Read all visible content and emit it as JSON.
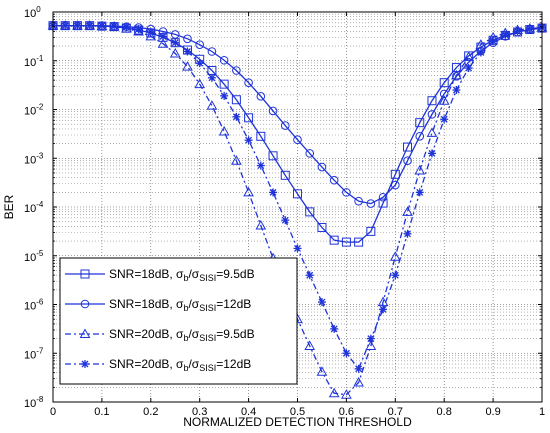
{
  "chart_data": {
    "type": "line",
    "xlabel": "NORMALIZED DETECTION THRESHOLD",
    "ylabel": "BER",
    "xlim": [
      0,
      1
    ],
    "ylim_log10": [
      -8,
      0
    ],
    "yscale": "log",
    "grid": "dotted",
    "x_ticks": [
      "0",
      "0.1",
      "0.2",
      "0.3",
      "0.4",
      "0.5",
      "0.6",
      "0.7",
      "0.8",
      "0.9",
      "1"
    ],
    "y_ticks": [
      {
        "base": "10",
        "exp": "0"
      },
      {
        "base": "10",
        "exp": "-1"
      },
      {
        "base": "10",
        "exp": "-2"
      },
      {
        "base": "10",
        "exp": "-3"
      },
      {
        "base": "10",
        "exp": "-4"
      },
      {
        "base": "10",
        "exp": "-5"
      },
      {
        "base": "10",
        "exp": "-6"
      },
      {
        "base": "10",
        "exp": "-7"
      },
      {
        "base": "10",
        "exp": "-8"
      }
    ],
    "legend_position": "lower-left",
    "line_color": "#1f33d9",
    "x": [
      0,
      0.025,
      0.05,
      0.075,
      0.1,
      0.125,
      0.15,
      0.175,
      0.2,
      0.225,
      0.25,
      0.275,
      0.3,
      0.325,
      0.35,
      0.375,
      0.4,
      0.425,
      0.45,
      0.475,
      0.5,
      0.525,
      0.55,
      0.575,
      0.6,
      0.625,
      0.65,
      0.675,
      0.7,
      0.725,
      0.75,
      0.775,
      0.8,
      0.825,
      0.85,
      0.875,
      0.9,
      0.925,
      0.95,
      0.975,
      1
    ],
    "series": [
      {
        "legend": {
          "pre": "SNR=18dB, σ",
          "sub1": "b",
          "mid": "/σ",
          "sub2": "SISI",
          "post": "=9.5dB"
        },
        "marker": "square",
        "dash": "",
        "log10_y": [
          -0.28,
          -0.28,
          -0.28,
          -0.28,
          -0.29,
          -0.3,
          -0.33,
          -0.37,
          -0.43,
          -0.52,
          -0.63,
          -0.78,
          -0.97,
          -1.2,
          -1.48,
          -1.8,
          -2.17,
          -2.55,
          -2.95,
          -3.35,
          -3.73,
          -4.1,
          -4.42,
          -4.68,
          -4.72,
          -4.72,
          -4.5,
          -3.92,
          -3.33,
          -2.77,
          -2.27,
          -1.82,
          -1.45,
          -1.14,
          -0.9,
          -0.72,
          -0.58,
          -0.48,
          -0.41,
          -0.36,
          -0.33
        ]
      },
      {
        "legend": {
          "pre": "SNR=18dB, σ",
          "sub1": "b",
          "mid": "/σ",
          "sub2": "SISI",
          "post": "=12dB"
        },
        "marker": "circle",
        "dash": "",
        "log10_y": [
          -0.28,
          -0.28,
          -0.28,
          -0.28,
          -0.28,
          -0.29,
          -0.3,
          -0.32,
          -0.35,
          -0.4,
          -0.46,
          -0.55,
          -0.67,
          -0.81,
          -0.99,
          -1.2,
          -1.45,
          -1.73,
          -2.03,
          -2.33,
          -2.62,
          -2.9,
          -3.18,
          -3.45,
          -3.7,
          -3.88,
          -3.93,
          -3.8,
          -3.55,
          -3.05,
          -2.55,
          -2.1,
          -1.68,
          -1.32,
          -1.03,
          -0.8,
          -0.63,
          -0.5,
          -0.41,
          -0.36,
          -0.33
        ]
      },
      {
        "legend": {
          "pre": "SNR=20dB, σ",
          "sub1": "b",
          "mid": "/σ",
          "sub2": "SISI",
          "post": "=9.5dB"
        },
        "marker": "triangle",
        "dash": "6,3,2,3",
        "log10_y": [
          -0.28,
          -0.28,
          -0.28,
          -0.28,
          -0.29,
          -0.3,
          -0.34,
          -0.4,
          -0.5,
          -0.65,
          -0.85,
          -1.12,
          -1.48,
          -1.92,
          -2.45,
          -3.05,
          -3.7,
          -4.38,
          -5.05,
          -5.7,
          -6.3,
          -6.85,
          -7.38,
          -7.82,
          -7.85,
          -7.6,
          -6.85,
          -5.95,
          -5.02,
          -4.1,
          -3.25,
          -2.48,
          -1.82,
          -1.3,
          -0.92,
          -0.67,
          -0.52,
          -0.43,
          -0.37,
          -0.34,
          -0.32
        ]
      },
      {
        "legend": {
          "pre": "SNR=20dB, σ",
          "sub1": "b",
          "mid": "/σ",
          "sub2": "SISI",
          "post": "=12dB"
        },
        "marker": "star",
        "dash": "6,3,2,3",
        "log10_y": [
          -0.28,
          -0.28,
          -0.28,
          -0.28,
          -0.28,
          -0.29,
          -0.31,
          -0.35,
          -0.41,
          -0.5,
          -0.63,
          -0.81,
          -1.05,
          -1.35,
          -1.72,
          -2.15,
          -2.63,
          -3.15,
          -3.7,
          -4.27,
          -4.85,
          -5.4,
          -5.95,
          -6.5,
          -7.0,
          -7.32,
          -6.7,
          -6.1,
          -5.4,
          -4.55,
          -3.7,
          -2.9,
          -2.2,
          -1.6,
          -1.15,
          -0.83,
          -0.6,
          -0.47,
          -0.39,
          -0.35,
          -0.32
        ]
      }
    ]
  }
}
